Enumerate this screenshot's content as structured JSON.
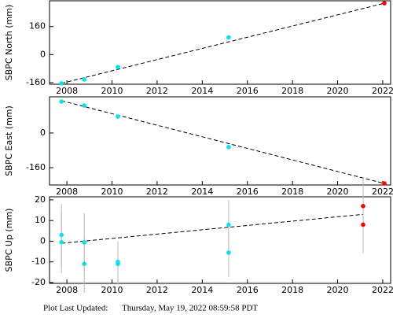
{
  "chart_data": [
    {
      "type": "scatter",
      "ylabel": "SBPC North (mm)",
      "xlim": [
        2007.23,
        2022.35
      ],
      "ylim": [
        -169,
        307
      ],
      "xticks": [
        2008,
        2010,
        2012,
        2014,
        2016,
        2018,
        2020,
        2022
      ],
      "yticks": [
        -160,
        0,
        160
      ],
      "series": [
        {
          "mode": "line",
          "color": "#000000",
          "x": [
            2007.76,
            2022.07
          ],
          "values": [
            -164,
            293
          ]
        },
        {
          "mode": "markers",
          "color": "#00e5ee",
          "x": [
            2007.76,
            2008.77,
            2010.26,
            2015.17
          ],
          "values": [
            -164,
            -142,
            -71,
            98
          ]
        },
        {
          "mode": "markers",
          "color": "#ff0000",
          "x": [
            2022.07
          ],
          "values": [
            293
          ]
        }
      ]
    },
    {
      "type": "scatter",
      "ylabel": "SBPC East (mm)",
      "xlim": [
        2007.23,
        2022.35
      ],
      "ylim": [
        -240,
        167
      ],
      "xticks": [
        2008,
        2010,
        2012,
        2014,
        2016,
        2018,
        2020,
        2022
      ],
      "yticks": [
        -160,
        0
      ],
      "series": [
        {
          "mode": "line",
          "color": "#000000",
          "x": [
            2007.76,
            2022.07
          ],
          "values": [
            149,
            -233
          ]
        },
        {
          "mode": "markers",
          "color": "#00e5ee",
          "x": [
            2007.76,
            2008.77,
            2010.26,
            2015.17
          ],
          "values": [
            145,
            127,
            76,
            -65
          ]
        },
        {
          "mode": "markers",
          "color": "#ff0000",
          "x": [
            2022.07
          ],
          "values": [
            -233
          ]
        }
      ]
    },
    {
      "type": "scatter",
      "ylabel": "SBPC Up (mm)",
      "xlim": [
        2007.23,
        2022.35
      ],
      "ylim": [
        -20.4,
        21.5
      ],
      "xticks": [
        2008,
        2010,
        2012,
        2014,
        2016,
        2018,
        2020,
        2022
      ],
      "yticks": [
        -20,
        -10,
        0,
        10,
        20
      ],
      "series": [
        {
          "mode": "line",
          "color": "#000000",
          "x": [
            2007.76,
            2021.13
          ],
          "values": [
            -1,
            13
          ]
        },
        {
          "mode": "markers",
          "color": "#00e5ee",
          "x": [
            2007.76,
            2007.76,
            2008.77,
            2008.77,
            2010.26,
            2010.26,
            2015.17,
            2015.17
          ],
          "values": [
            3,
            -0.5,
            -0.5,
            -11,
            -10,
            -11,
            8,
            -5.5
          ],
          "errors": [
            15,
            15,
            14,
            14,
            10,
            10,
            12,
            12
          ]
        },
        {
          "mode": "markers",
          "color": "#ff0000",
          "x": [
            2021.13,
            2021.13
          ],
          "values": [
            17,
            8
          ],
          "errors": [
            14,
            14
          ]
        }
      ]
    }
  ],
  "footer": {
    "label": "Plot Last Updated:",
    "timestamp": "Thursday, May 19, 2022 08:59:58 PDT"
  }
}
